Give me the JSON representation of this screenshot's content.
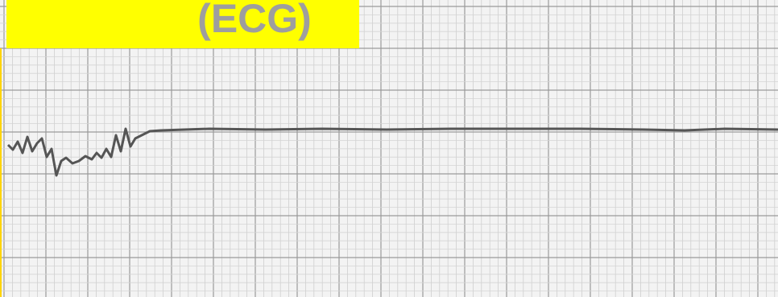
{
  "label": "(ECG)"
}
